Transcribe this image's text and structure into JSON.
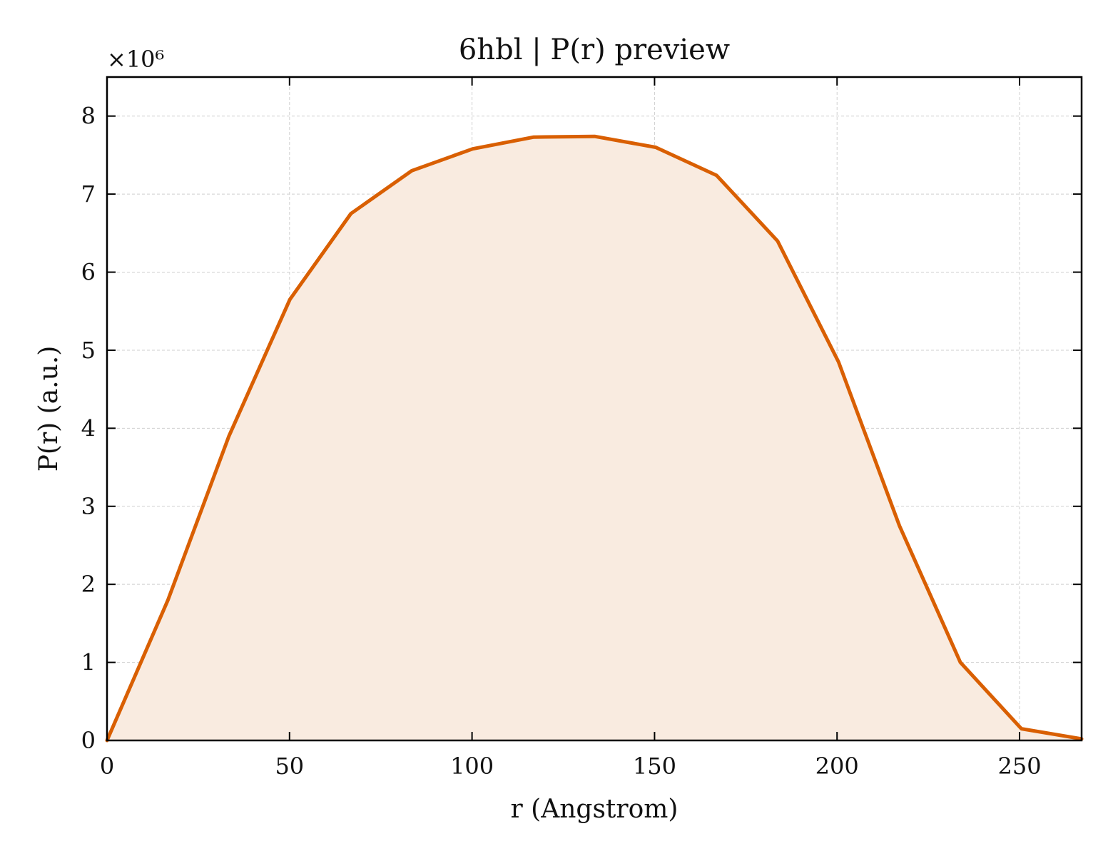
{
  "chart_data": {
    "type": "area",
    "title": "6hbl | P(r) preview",
    "xlabel": "r (Angstrom)",
    "ylabel": "P(r) (a.u.)",
    "y_multiplier_label": "×10⁶",
    "y_scale_factor": 1000000,
    "xlim": [
      0,
      267
    ],
    "ylim": [
      0,
      8500000
    ],
    "xticks": [
      0,
      50,
      100,
      150,
      200,
      250
    ],
    "xtick_labels": [
      "0",
      "50",
      "100",
      "150",
      "200",
      "250"
    ],
    "yticks": [
      0,
      1000000,
      2000000,
      3000000,
      4000000,
      5000000,
      6000000,
      7000000,
      8000000
    ],
    "ytick_labels": [
      "0",
      "1",
      "2",
      "3",
      "4",
      "5",
      "6",
      "7",
      "8"
    ],
    "grid": true,
    "tick_direction": "in",
    "line_color": "#d95f02",
    "fill_color": "#f9ebe0",
    "x": [
      0,
      16.7,
      33.4,
      50.1,
      66.8,
      83.5,
      100.2,
      116.9,
      133.6,
      150.3,
      167.0,
      183.7,
      200.4,
      217.1,
      233.8,
      250.5,
      267.0
    ],
    "values": [
      0,
      1800000,
      3900000,
      5650000,
      6750000,
      7300000,
      7580000,
      7730000,
      7740000,
      7600000,
      7240000,
      6400000,
      4850000,
      2750000,
      1000000,
      150000,
      20000
    ]
  }
}
